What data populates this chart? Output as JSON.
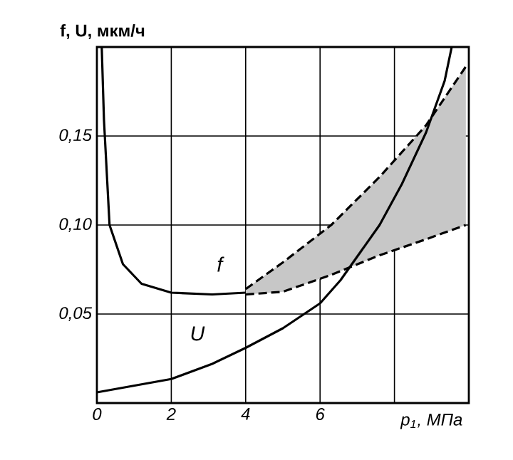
{
  "chart_data": {
    "type": "line",
    "xlabel": "p$_{1}$, МПа",
    "ylabel": "f, U, мкм/ч",
    "xlim": [
      0,
      10
    ],
    "ylim": [
      0,
      0.2
    ],
    "xticks": [
      0,
      2,
      4,
      6,
      {
        "value": 8,
        "label": null
      }
    ],
    "yticks": [
      {
        "value": 0.05,
        "label": "0,05"
      },
      {
        "value": 0.1,
        "label": "0,10"
      },
      {
        "value": 0.15,
        "label": "0,15"
      },
      {
        "value": 0.2,
        "label": null
      }
    ],
    "grid": true,
    "marker": "none",
    "series": [
      {
        "color": "#000000",
        "line_style": "solid",
        "x": [
          0.13,
          0.19,
          0.34,
          0.7,
          1.2,
          2,
          3.1,
          4
        ],
        "values": [
          0.2,
          0.159,
          0.1,
          0.078,
          0.067,
          0.062,
          0.061,
          0.062
        ]
      },
      {
        "color": "#000000",
        "line_style": "dashed",
        "x": [
          4,
          5,
          6.3,
          7.6,
          8.85,
          9.92
        ],
        "values": [
          0.061,
          0.0625,
          0.072,
          0.083,
          0.092,
          0.1
        ],
        "lower": [
          0.061,
          0.0625,
          0.072,
          0.083,
          0.092,
          0.1
        ],
        "upper": [
          0.064,
          0.079,
          0.1,
          0.127,
          0.156,
          0.189
        ]
      },
      {
        "color": "#000000",
        "line_style": "dashed",
        "x": [
          4,
          5,
          6.3,
          7.6,
          8.85,
          9.92
        ],
        "values": [
          0.064,
          0.079,
          0.1,
          0.127,
          0.156,
          0.189
        ]
      },
      {
        "color": "#000000",
        "line_style": "solid",
        "x": [
          0,
          2,
          3.1,
          4,
          5,
          6,
          6.55,
          7.6,
          8.2,
          8.85,
          9.35,
          9.54
        ],
        "values": [
          0.006,
          0.0135,
          0.022,
          0.031,
          0.042,
          0.056,
          0.069,
          0.1,
          0.123,
          0.152,
          0.181,
          0.2
        ]
      }
    ],
    "annotations": [
      {
        "text": "f",
        "x": 3.3,
        "y": 0.078
      },
      {
        "text": "U",
        "x": 2.7,
        "y": 0.039
      }
    ]
  }
}
